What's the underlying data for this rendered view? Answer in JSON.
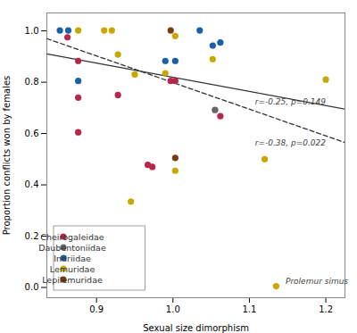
{
  "chart_data": {
    "type": "scatter",
    "xlabel": "Sexual size dimorphism",
    "ylabel": "Proportion conflicts won by females",
    "xlim": [
      0.835,
      1.225
    ],
    "ylim": [
      -0.04,
      1.07
    ],
    "xticks": [
      0.9,
      {
        "value": 1.0,
        "label": "1.0"
      },
      1.1,
      1.2
    ],
    "yticks": [
      {
        "value": 0.0,
        "label": "0.0"
      },
      0.2,
      0.4,
      0.6,
      0.8,
      {
        "value": 1.0,
        "label": "1.0"
      }
    ],
    "grid": false,
    "legend": "lower left",
    "series": [
      {
        "type": "line",
        "color": "#333333",
        "line_style": "solid",
        "x": [
          0.835,
          1.225
        ],
        "values": [
          0.91,
          0.695
        ]
      },
      {
        "type": "line",
        "color": "#333333",
        "line_style": "dashed",
        "x": [
          0.835,
          1.225
        ],
        "values": [
          0.97,
          0.565
        ]
      },
      {
        "name": "Cheirogaleidae",
        "type": "scatter",
        "marker": "circle",
        "color": "#b5284a",
        "x": [
          0.862,
          0.876,
          0.876,
          0.876,
          0.928,
          0.967,
          0.973,
          1.003,
          0.997,
          1.062
        ],
        "values": [
          0.975,
          0.883,
          0.74,
          0.605,
          0.75,
          0.478,
          0.47,
          0.805,
          0.805,
          0.668
        ]
      },
      {
        "name": "Daubentoniidae",
        "type": "scatter",
        "marker": "circle",
        "color": "#666666",
        "x": [
          1.055
        ],
        "values": [
          0.692
        ]
      },
      {
        "name": "Indriidae",
        "type": "scatter",
        "marker": "circle",
        "color": "#1a5fa8",
        "x": [
          0.852,
          0.863,
          0.876,
          0.99,
          1.003,
          1.035,
          1.052,
          1.062
        ],
        "values": [
          1.002,
          1.002,
          0.805,
          0.883,
          0.883,
          1.002,
          0.943,
          0.955
        ]
      },
      {
        "name": "Lemuridae",
        "type": "scatter",
        "marker": "circle",
        "color": "#c8a800",
        "x": [
          0.876,
          0.91,
          0.92,
          0.928,
          0.95,
          0.99,
          1.003,
          1.003,
          0.945,
          1.052,
          1.12,
          1.2,
          1.135
        ],
        "values": [
          1.002,
          1.002,
          1.002,
          0.908,
          0.83,
          0.835,
          0.455,
          0.98,
          0.335,
          0.89,
          0.5,
          0.81,
          0.005
        ]
      },
      {
        "name": "Lepilemuridae",
        "type": "scatter",
        "marker": "circle",
        "color": "#7a3b10",
        "x": [
          0.997,
          1.003
        ],
        "values": [
          1.002,
          0.505
        ]
      }
    ],
    "annotations": [
      {
        "text": "r=-0.25, p=0.149",
        "x": 1.105,
        "y": 0.725
      },
      {
        "text": "r=-0.38, p=0.022",
        "x": 1.105,
        "y": 0.565
      },
      {
        "text": "Prolemur simus",
        "x": 1.145,
        "y": 0.025
      }
    ]
  }
}
